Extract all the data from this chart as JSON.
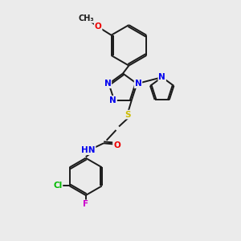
{
  "background_color": "#ebebeb",
  "bond_color": "#1a1a1a",
  "atom_colors": {
    "N": "#0000ee",
    "O": "#ee0000",
    "S": "#ccbb00",
    "Cl": "#00bb00",
    "F": "#cc00cc",
    "H": "#888888",
    "C": "#1a1a1a"
  },
  "bond_lw": 1.4,
  "font_size": 7.5,
  "fig_width": 3.0,
  "fig_height": 3.0,
  "dpi": 100,
  "xlim": [
    0,
    10
  ],
  "ylim": [
    0,
    10
  ]
}
